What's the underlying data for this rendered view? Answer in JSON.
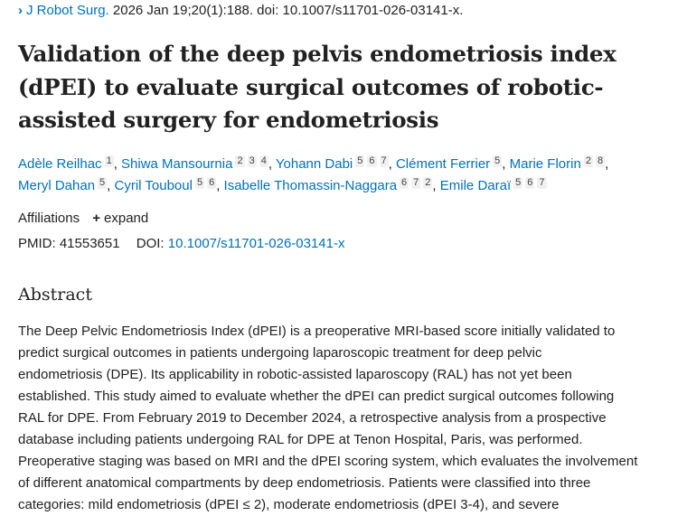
{
  "citation": {
    "journal": "J Robot Surg.",
    "details": "2026 Jan 19;20(1):188. doi: 10.1007/s11701-026-03141-x."
  },
  "title": "Validation of the deep pelvis endometriosis index (dPEI) to evaluate surgical outcomes of robotic-assisted surgery for endometriosis",
  "authors": [
    [
      {
        "name": "Adèle Reilhac",
        "aff": [
          "1"
        ]
      },
      {
        "name": "Shiwa Mansournia",
        "aff": [
          "2",
          "3",
          "4"
        ]
      },
      {
        "name": "Yohann Dabi",
        "aff": [
          "5",
          "6",
          "7"
        ]
      },
      {
        "name": "Clément Ferrier",
        "aff": [
          "5"
        ]
      },
      {
        "name": "Marie Florin",
        "aff": [
          "2",
          "8"
        ]
      }
    ],
    [
      {
        "name": "Meryl Dahan",
        "aff": [
          "5"
        ]
      },
      {
        "name": "Cyril Touboul",
        "aff": [
          "5",
          "6"
        ]
      },
      {
        "name": "Isabelle Thomassin-Naggara",
        "aff": [
          "6",
          "7",
          "2"
        ]
      },
      {
        "name": "Emile Daraï",
        "aff": [
          "5",
          "6",
          "7"
        ]
      }
    ]
  ],
  "affiliations": {
    "label": "Affiliations",
    "expand": "expand"
  },
  "ids": {
    "pmid_label": "PMID:",
    "pmid": "41553651",
    "doi_label": "DOI:",
    "doi": "10.1007/s11701-026-03141-x"
  },
  "abstract": {
    "heading": "Abstract",
    "lines": [
      "The Deep Pelvic Endometriosis Index (dPEI) is a preoperative MRI-based score initially validated to",
      "predict surgical outcomes in patients undergoing laparoscopic treatment for deep pelvic",
      "endometriosis (DPE). Its applicability in robotic-assisted laparoscopy (RAL) has not yet been",
      "established. This study aimed to evaluate whether the dPEI can predict surgical outcomes following",
      "RAL for DPE. From February 2019 to December 2024, a retrospective analysis from a prospective",
      "database including patients undergoing RAL for DPE at Tenon Hospital, Paris, was performed.",
      "Preoperative staging was based on MRI and the dPEI scoring system, which evaluates the involvement",
      "of different anatomical compartments by deep endometriosis. Patients were classified into three",
      "categories: mild endometriosis (dPEI ≤ 2), moderate endometriosis (dPEI 3-4), and severe"
    ]
  }
}
